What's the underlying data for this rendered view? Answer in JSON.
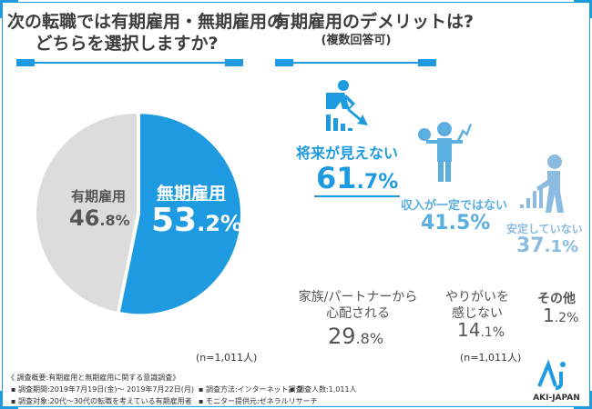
{
  "left": {
    "title_line1": "次の転職では有期雇用・無期雇用の",
    "title_line2": "どちらを選択しますか?",
    "sample": "(n=1,011人)"
  },
  "chart_data": {
    "type": "pie",
    "slices": [
      {
        "label": "無期雇用",
        "value": 53.2,
        "int": "53",
        "dec": ".2%",
        "color": "#1e9be0"
      },
      {
        "label": "有期雇用",
        "value": 46.8,
        "int": "46",
        "dec": ".8%",
        "color": "#dcdcdc"
      }
    ]
  },
  "right": {
    "title": "有期雇用のデメリットは?",
    "subtitle": "(複数回答可)",
    "sample": "(n=1,011人)",
    "items": [
      {
        "label": "将来が見えない",
        "int": "61",
        "dec": ".7%",
        "icon": "worried-man-declining-graph-icon"
      },
      {
        "label": "収入が一定ではない",
        "int": "41",
        "dec": ".5%",
        "icon": "man-money-bag-icon"
      },
      {
        "label": "安定していない",
        "int": "37",
        "dec": ".1%",
        "icon": "old-man-bar-graph-icon"
      },
      {
        "label_line1": "家族/パートナーから",
        "label_line2": "心配される",
        "int": "29",
        "dec": ".8%"
      },
      {
        "label_line1": "やりがいを",
        "label_line2": "感じない",
        "int": "14",
        "dec": ".1%"
      },
      {
        "label": "その他",
        "int": "1",
        "dec": ".2%"
      }
    ]
  },
  "footer": {
    "summary": "《 調査概要:有期雇用と無期雇用に関する意識調査》",
    "period": "▪ 調査期間:2019年7月19日(金)～ 2019年7月22日(月)",
    "method": "▪ 調査方法:インターネット調査",
    "count": "▪ 調査人数:1,011人",
    "target": "▪ 調査対象:20代～30代の転職を考えている有期雇用者",
    "provider": "▪ モニター提供元:ゼネラルリサーチ"
  },
  "logo": {
    "text": "AKI-JAPAN",
    "color": "#1e9be0"
  },
  "colors": {
    "accent": "#1e9be0",
    "light": "#5aaee0",
    "lighter": "#8cbbe0",
    "gray": "#dcdcdc"
  }
}
